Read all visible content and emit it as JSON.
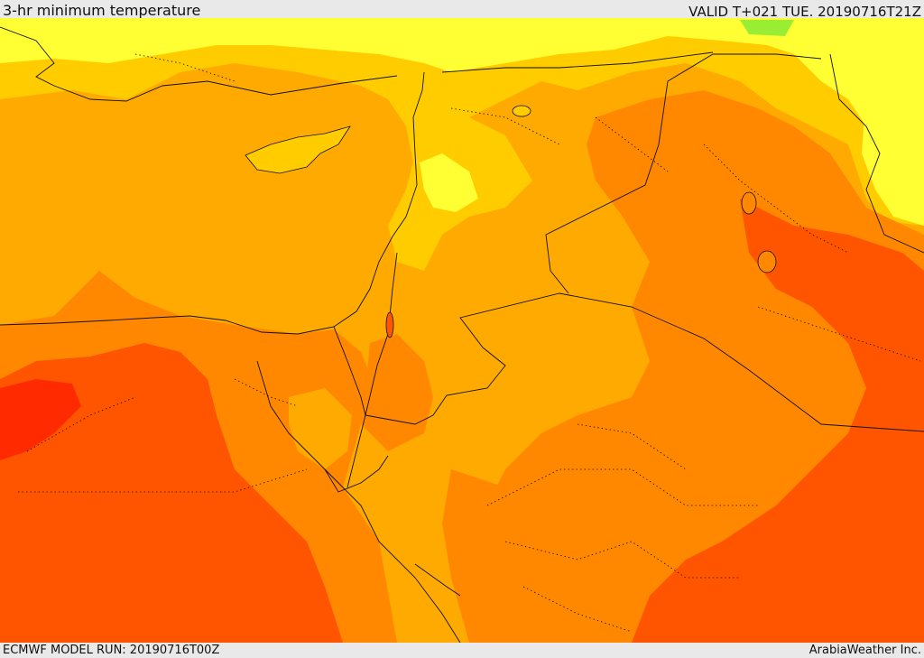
{
  "header": {
    "title": "3-hr minimum temperature",
    "valid": "VALID T+021 TUE. 20190716T21Z"
  },
  "footer": {
    "model_run": "ECMWF MODEL RUN: 20190716T00Z",
    "credit": "ArabiaWeather Inc."
  },
  "colors": {
    "pale_yellow": "#ffff33",
    "yellow": "#ffcc00",
    "light_orange": "#ffaa00",
    "orange": "#ff8800",
    "dark_orange": "#ff5500",
    "red": "#ff2a00",
    "green_patch": "#99ee33"
  }
}
